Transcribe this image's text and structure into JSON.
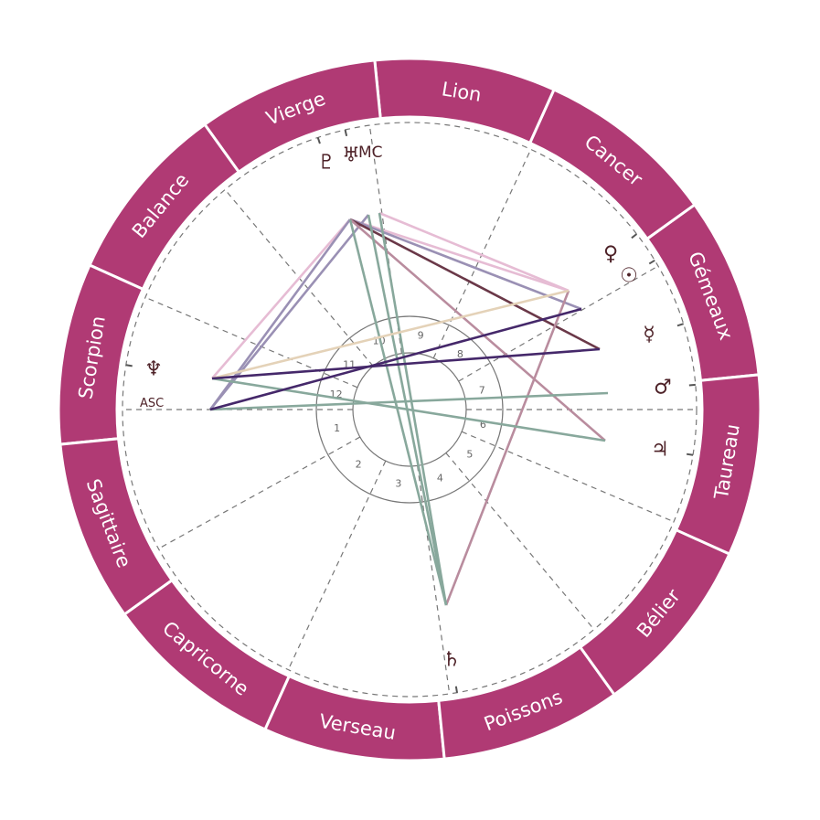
{
  "colors": {
    "ring": "#b03a74",
    "glyph": "#4e2228",
    "cusp": "#666666"
  },
  "signs": [
    "Gémeaux",
    "Cancer",
    "Lion",
    "Vierge",
    "Balance",
    "Scorpion",
    "Sagittaire",
    "Capricorne",
    "Verseau",
    "Poissons",
    "Bélier",
    "Taureau"
  ],
  "houses": [
    "1",
    "2",
    "3",
    "4",
    "5",
    "6",
    "7",
    "8",
    "9",
    "10",
    "11",
    "12"
  ],
  "angles": {
    "asc": "ASC",
    "mc": "MC"
  },
  "planets": [
    {
      "name": "pluto",
      "glyph": "♇"
    },
    {
      "name": "uranus",
      "glyph": "♅"
    },
    {
      "name": "venus",
      "glyph": "♀"
    },
    {
      "name": "sun",
      "glyph": "☉"
    },
    {
      "name": "mercury",
      "glyph": "☿"
    },
    {
      "name": "mars",
      "glyph": "♂"
    },
    {
      "name": "jupiter",
      "glyph": "♃"
    },
    {
      "name": "saturn",
      "glyph": "♄"
    },
    {
      "name": "neptune",
      "glyph": "♆"
    }
  ],
  "aspect_colors": {
    "pink": "#e6bcd4",
    "lavender": "#9a90b4",
    "maroon": "#6a3848",
    "mauve": "#b98c9e",
    "teal": "#88a89c",
    "beige": "#e4d2b8",
    "purple": "#45286a"
  }
}
